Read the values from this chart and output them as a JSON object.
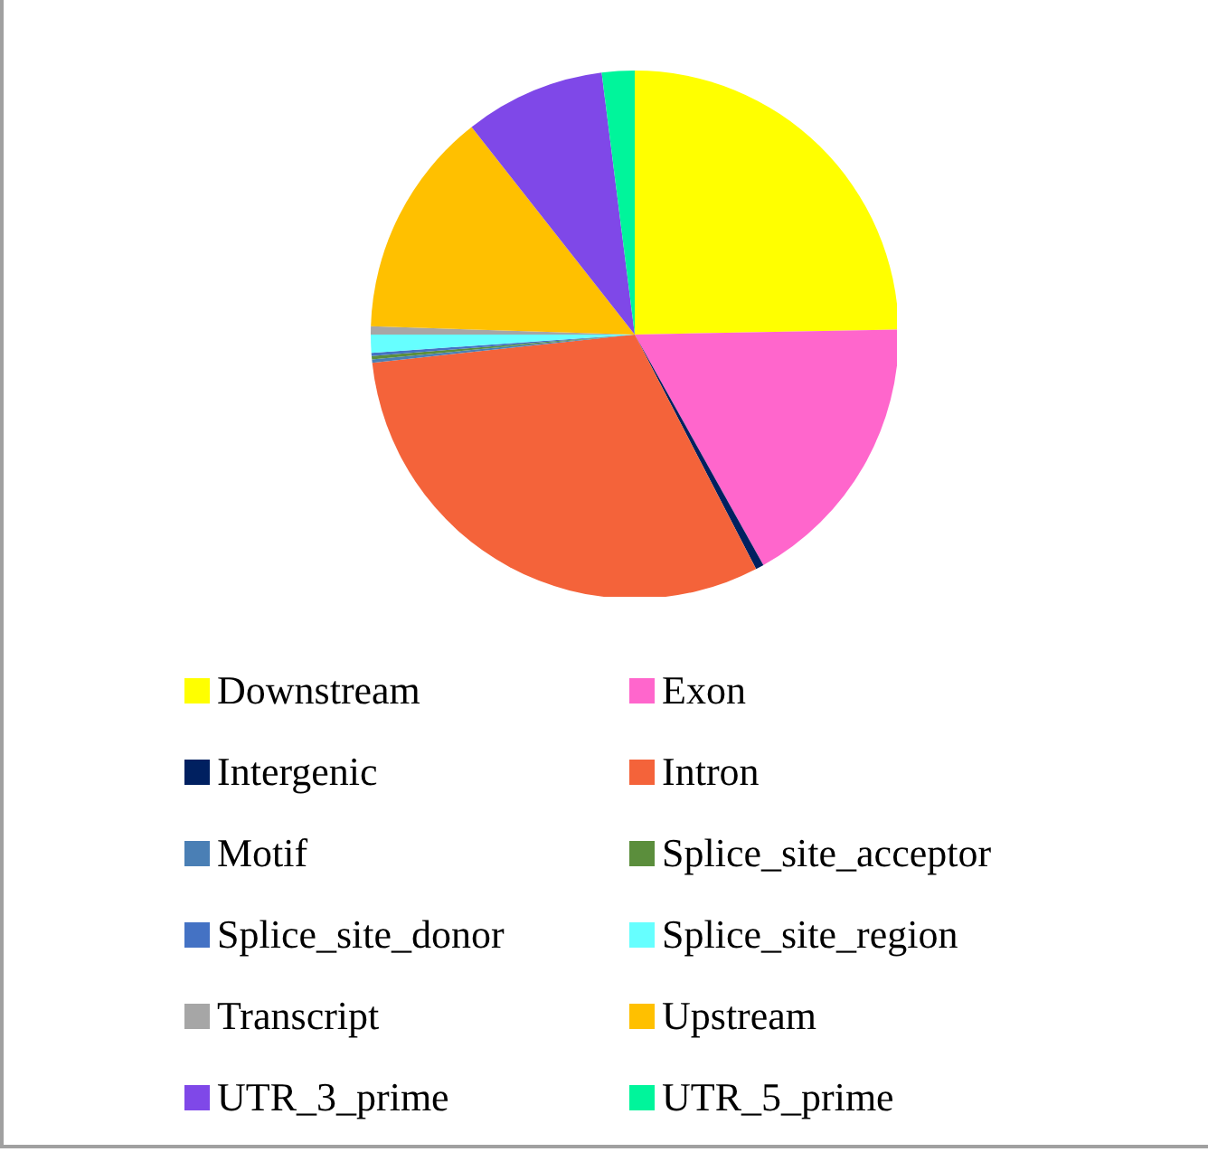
{
  "chart_data": {
    "type": "pie",
    "categories": [
      "Downstream",
      "Exon",
      "Intergenic",
      "Intron",
      "Motif",
      "Splice_site_acceptor",
      "Splice_site_donor",
      "Splice_site_region",
      "Transcript",
      "Upstream",
      "UTR_3_prime",
      "UTR_5_prime"
    ],
    "values": [
      24.7,
      17.2,
      0.5,
      30.9,
      0.2,
      0.2,
      0.2,
      1.1,
      0.5,
      13.9,
      8.6,
      2.0
    ],
    "colors": [
      "#ffff00",
      "#ff66cc",
      "#002060",
      "#f4633a",
      "#4a7fb5",
      "#5b8e3c",
      "#4472c4",
      "#66ffff",
      "#a6a6a6",
      "#ffc000",
      "#7f48e8",
      "#00f59b"
    ],
    "legend": "bottom"
  }
}
